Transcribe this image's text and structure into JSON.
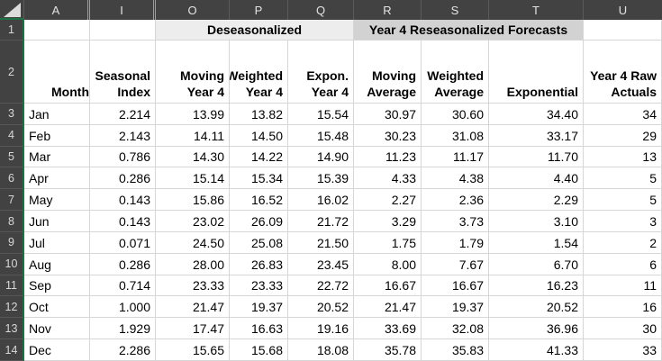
{
  "colors": {
    "header_bg": "#424242",
    "header_text": "#e3e3e3",
    "accent_green": "#1E7145",
    "gridline": "#d6d6d6",
    "band_light": "#EDEDED",
    "band_dark": "#D2D2D2",
    "cell_text": "#000000"
  },
  "column_headers": [
    "A",
    "I",
    "O",
    "P",
    "Q",
    "R",
    "S",
    "T",
    "U"
  ],
  "row1": {
    "number": "1",
    "deseasonalized_label": "Deseasonalized",
    "reseasonalized_label": "Year 4 Reseasonalized Forecasts"
  },
  "row2": {
    "number": "2",
    "headers": [
      {
        "col": "A",
        "lines": [
          "Month"
        ],
        "align": "left"
      },
      {
        "col": "I",
        "lines": [
          "Seasonal",
          "Index"
        ],
        "align": "right"
      },
      {
        "col": "O",
        "lines": [
          "Moving",
          "Year 4"
        ],
        "align": "right"
      },
      {
        "col": "P",
        "lines": [
          "Weighted",
          "Year 4"
        ],
        "align": "right"
      },
      {
        "col": "Q",
        "lines": [
          "Expon.",
          "Year 4"
        ],
        "align": "right"
      },
      {
        "col": "R",
        "lines": [
          "Moving",
          "Average"
        ],
        "align": "right"
      },
      {
        "col": "S",
        "lines": [
          "Weighted",
          "Average"
        ],
        "align": "right"
      },
      {
        "col": "T",
        "lines": [
          "Exponential"
        ],
        "align": "right"
      },
      {
        "col": "U",
        "lines": [
          "Year 4 Raw",
          "Actuals"
        ],
        "align": "right"
      }
    ]
  },
  "value_columns": [
    "I",
    "O",
    "P",
    "Q",
    "R",
    "S",
    "T",
    "U"
  ],
  "rows": [
    {
      "row": "3",
      "month": "Jan",
      "values": [
        "2.214",
        "13.99",
        "13.82",
        "15.54",
        "30.97",
        "30.60",
        "34.40",
        "34"
      ]
    },
    {
      "row": "4",
      "month": "Feb",
      "values": [
        "2.143",
        "14.11",
        "14.50",
        "15.48",
        "30.23",
        "31.08",
        "33.17",
        "29"
      ]
    },
    {
      "row": "5",
      "month": "Mar",
      "values": [
        "0.786",
        "14.30",
        "14.22",
        "14.90",
        "11.23",
        "11.17",
        "11.70",
        "13"
      ]
    },
    {
      "row": "6",
      "month": "Apr",
      "values": [
        "0.286",
        "15.14",
        "15.34",
        "15.39",
        "4.33",
        "4.38",
        "4.40",
        "5"
      ]
    },
    {
      "row": "7",
      "month": "May",
      "values": [
        "0.143",
        "15.86",
        "16.52",
        "16.02",
        "2.27",
        "2.36",
        "2.29",
        "5"
      ]
    },
    {
      "row": "8",
      "month": "Jun",
      "values": [
        "0.143",
        "23.02",
        "26.09",
        "21.72",
        "3.29",
        "3.73",
        "3.10",
        "3"
      ]
    },
    {
      "row": "9",
      "month": "Jul",
      "values": [
        "0.071",
        "24.50",
        "25.08",
        "21.50",
        "1.75",
        "1.79",
        "1.54",
        "2"
      ]
    },
    {
      "row": "10",
      "month": "Aug",
      "values": [
        "0.286",
        "28.00",
        "26.83",
        "23.45",
        "8.00",
        "7.67",
        "6.70",
        "6"
      ]
    },
    {
      "row": "11",
      "month": "Sep",
      "values": [
        "0.714",
        "23.33",
        "23.33",
        "22.72",
        "16.67",
        "16.67",
        "16.23",
        "11"
      ]
    },
    {
      "row": "12",
      "month": "Oct",
      "values": [
        "1.000",
        "21.47",
        "19.37",
        "20.52",
        "21.47",
        "19.37",
        "20.52",
        "16"
      ]
    },
    {
      "row": "13",
      "month": "Nov",
      "values": [
        "1.929",
        "17.47",
        "16.63",
        "19.16",
        "33.69",
        "32.08",
        "36.96",
        "30"
      ]
    },
    {
      "row": "14",
      "month": "Dec",
      "values": [
        "2.286",
        "15.65",
        "15.68",
        "18.08",
        "35.78",
        "35.83",
        "41.33",
        "33"
      ]
    }
  ]
}
